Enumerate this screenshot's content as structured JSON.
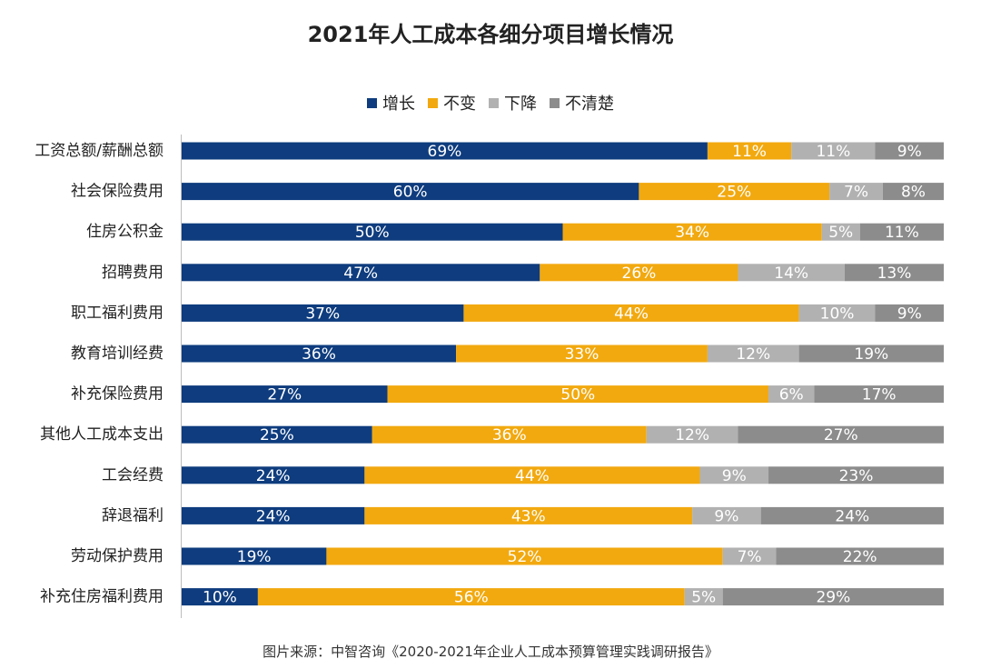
{
  "colors": {
    "series": [
      "#0e3c7e",
      "#f2a90f",
      "#b1b1b1",
      "#8c8c8c"
    ],
    "bar_text": "#ffffff",
    "axis": "#bdbdbd",
    "text": "#222222"
  },
  "chart_data": {
    "type": "bar",
    "orientation": "horizontal",
    "stacked": true,
    "title": "2021年人工成本各细分项目增长情况",
    "legend_position": "top",
    "xlabel": "",
    "ylabel": "",
    "xlim": [
      0,
      100
    ],
    "value_suffix": "%",
    "categories": [
      "工资总额/薪酬总额",
      "社会保险费用",
      "住房公积金",
      "招聘费用",
      "职工福利费用",
      "教育培训经费",
      "补充保险费用",
      "其他人工成本支出",
      "工会经费",
      "辞退福利",
      "劳动保护费用",
      "补充住房福利费用"
    ],
    "series": [
      {
        "name": "增长",
        "values": [
          69,
          60,
          50,
          47,
          37,
          36,
          27,
          25,
          24,
          24,
          19,
          10
        ]
      },
      {
        "name": "不变",
        "values": [
          11,
          25,
          34,
          26,
          44,
          33,
          50,
          36,
          44,
          43,
          52,
          56
        ]
      },
      {
        "name": "下降",
        "values": [
          11,
          7,
          5,
          14,
          10,
          12,
          6,
          12,
          9,
          9,
          7,
          5
        ]
      },
      {
        "name": "不清楚",
        "values": [
          9,
          8,
          11,
          13,
          9,
          19,
          17,
          27,
          23,
          24,
          22,
          29
        ]
      }
    ]
  },
  "source": "图片来源：中智咨询《2020-2021年企业人工成本预算管理实践调研报告》"
}
